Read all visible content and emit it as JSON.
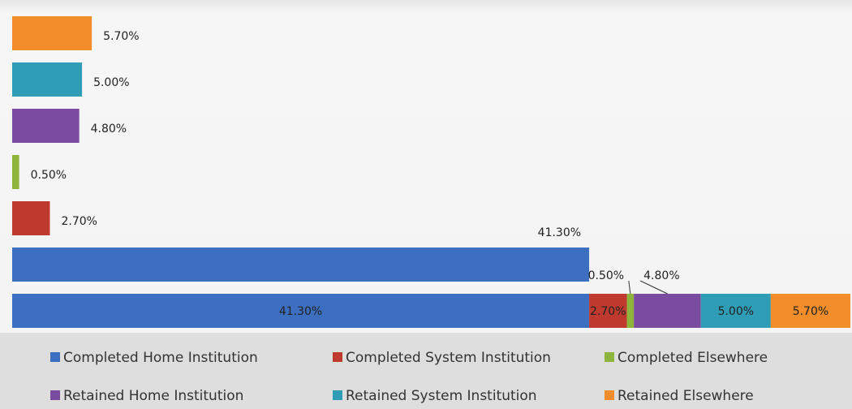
{
  "chart_data": {
    "type": "bar",
    "series": [
      {
        "name": "Completed Home Institution",
        "color": "#3d6fc0",
        "values": [
          41.3
        ],
        "value_labels": [
          "41.30%"
        ]
      },
      {
        "name": "Completed System Institution",
        "color": "#c0392f",
        "values": [
          2.7
        ],
        "value_labels": [
          "2.70%"
        ]
      },
      {
        "name": "Completed Elsewhere",
        "color": "#8fb43c",
        "values": [
          0.5
        ],
        "value_labels": [
          "0.50%"
        ]
      },
      {
        "name": "Retained Home Institution",
        "color": "#7a4c9f",
        "values": [
          4.8
        ],
        "value_labels": [
          "4.80%"
        ]
      },
      {
        "name": "Retained System Institution",
        "color": "#2f9db5",
        "values": [
          5.0
        ],
        "value_labels": [
          "5.00%"
        ]
      },
      {
        "name": "Retained Elsewhere",
        "color": "#f28d2c",
        "values": [
          5.7
        ],
        "value_labels": [
          "5.70%"
        ]
      }
    ],
    "stacked_total_bar": true,
    "legend": "bottom"
  }
}
